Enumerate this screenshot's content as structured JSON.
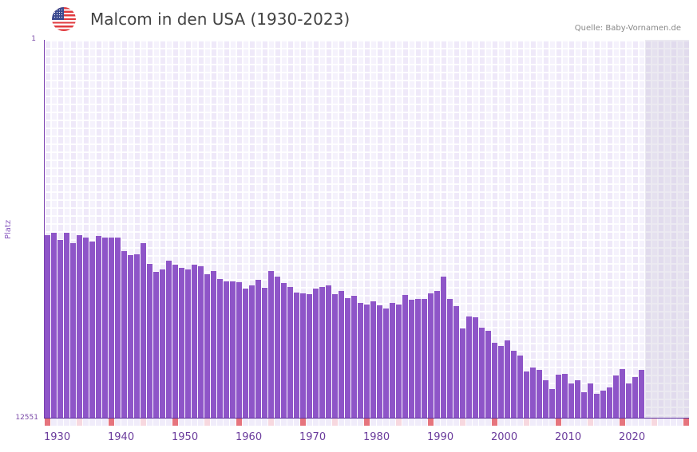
{
  "header": {
    "title": "Malcom in den USA (1930-2023)",
    "source": "Quelle: Baby-Vornamen.de",
    "flag_icon": "usa-flag-icon"
  },
  "colors": {
    "bar": "#8e55c8",
    "decade_marker": "#e6747d",
    "half_decade_marker": "#f7d8df",
    "axis": "#7b3fb0"
  },
  "chart_data": {
    "type": "bar",
    "title": "Malcom in den USA (1930-2023)",
    "xlabel": "",
    "ylabel": "Platz",
    "ylim": [
      12551,
      1
    ],
    "y_inverted": true,
    "y_ticks": [
      "1",
      "12551"
    ],
    "x_tick_labels": [
      "1930",
      "1940",
      "1950",
      "1960",
      "1970",
      "1980",
      "1990",
      "2000",
      "2010",
      "2020"
    ],
    "x_range": [
      1930,
      2030
    ],
    "grid": true,
    "legend": null,
    "categories": [
      1930,
      1931,
      1932,
      1933,
      1934,
      1935,
      1936,
      1937,
      1938,
      1939,
      1940,
      1941,
      1942,
      1943,
      1944,
      1945,
      1946,
      1947,
      1948,
      1949,
      1950,
      1951,
      1952,
      1953,
      1954,
      1955,
      1956,
      1957,
      1958,
      1959,
      1960,
      1961,
      1962,
      1963,
      1964,
      1965,
      1966,
      1967,
      1968,
      1969,
      1970,
      1971,
      1972,
      1973,
      1974,
      1975,
      1976,
      1977,
      1978,
      1979,
      1980,
      1981,
      1982,
      1983,
      1984,
      1985,
      1986,
      1987,
      1988,
      1989,
      1990,
      1991,
      1992,
      1993,
      1994,
      1995,
      1996,
      1997,
      1998,
      1999,
      2000,
      2001,
      2002,
      2003,
      2004,
      2005,
      2006,
      2007,
      2008,
      2009,
      2010,
      2011,
      2012,
      2013,
      2014,
      2015,
      2016,
      2017,
      2018,
      2019,
      2020,
      2021,
      2022,
      2023
    ],
    "values": [
      6474,
      6394,
      6632,
      6394,
      6738,
      6474,
      6553,
      6685,
      6500,
      6553,
      6553,
      6553,
      7002,
      7135,
      7108,
      6738,
      7425,
      7689,
      7610,
      7319,
      7451,
      7557,
      7610,
      7451,
      7504,
      7768,
      7663,
      7927,
      8006,
      8006,
      8033,
      8244,
      8138,
      7953,
      8218,
      7663,
      7848,
      8059,
      8191,
      8376,
      8403,
      8429,
      8244,
      8191,
      8138,
      8429,
      8323,
      8561,
      8482,
      8720,
      8773,
      8667,
      8799,
      8905,
      8720,
      8773,
      8456,
      8614,
      8588,
      8588,
      8403,
      8323,
      7848,
      8588,
      8826,
      9565,
      9169,
      9195,
      9539,
      9645,
      10041,
      10147,
      9962,
      10305,
      10463,
      10992,
      10860,
      10939,
      11282,
      11573,
      11097,
      11071,
      11388,
      11282,
      11679,
      11388,
      11731,
      11626,
      11520,
      11124,
      10913,
      11388,
      11177,
      10939
    ]
  }
}
